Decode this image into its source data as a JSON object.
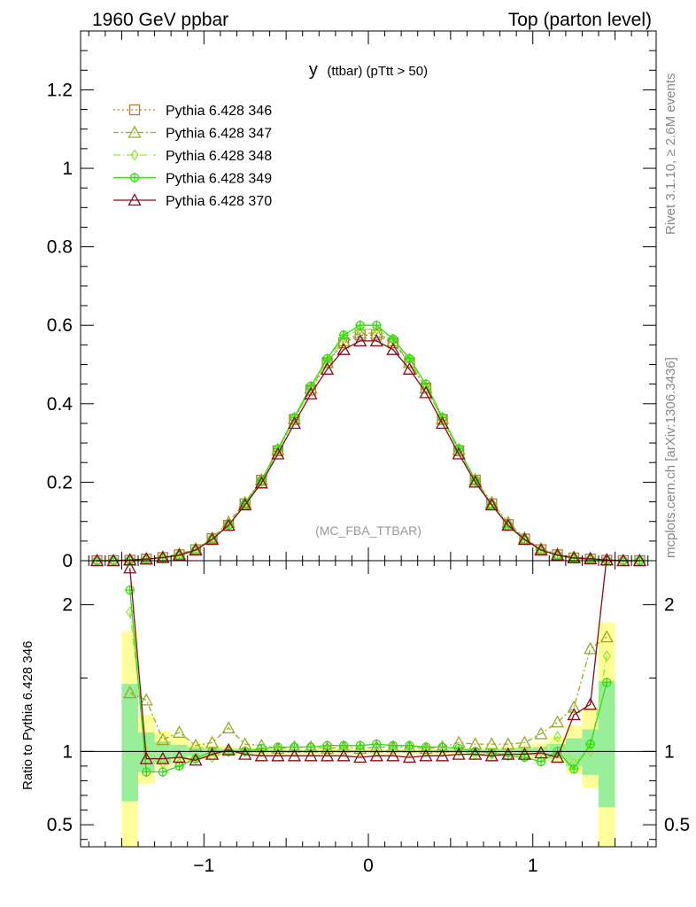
{
  "header": {
    "left": "1960 GeV ppbar",
    "right": "Top (parton level)"
  },
  "side": {
    "rivet": "Rivet 3.1.10, ≥ 2.6M events",
    "mcplots": "mcplots.cern.ch [arXiv:1306.3436]"
  },
  "plot_title": {
    "main": "y",
    "sub": "(ttbar)  (pTtt > 50)"
  },
  "analysis_label": "(MC_FBA_TTBAR)",
  "ratio_ylabel": "Ratio to Pythia 6.428 346",
  "colors": {
    "p346": "#b07a3a",
    "p347": "#9aaa22",
    "p348": "#99e634",
    "p349": "#33dd11",
    "p370": "#8a0a1a",
    "band_yellow": "#ffff99",
    "band_green": "#99ee99"
  },
  "chart_data": [
    {
      "type": "line",
      "panel": "main",
      "xlim": [
        -1.75,
        1.75
      ],
      "ylim": [
        0,
        1.35
      ],
      "y_ticks": [
        0,
        0.2,
        0.4,
        0.6,
        0.8,
        1,
        1.2
      ],
      "y_tick_labels": [
        "0",
        "0.2",
        "0.4",
        "0.6",
        "0.8",
        "1",
        "1.2"
      ],
      "legend_position": "top-left",
      "x": [
        -1.65,
        -1.55,
        -1.45,
        -1.35,
        -1.25,
        -1.15,
        -1.05,
        -0.95,
        -0.85,
        -0.75,
        -0.65,
        -0.55,
        -0.45,
        -0.35,
        -0.25,
        -0.15,
        -0.05,
        0.05,
        0.15,
        0.25,
        0.35,
        0.45,
        0.55,
        0.65,
        0.75,
        0.85,
        0.95,
        1.05,
        1.15,
        1.25,
        1.35,
        1.45,
        1.55,
        1.65
      ],
      "series": [
        {
          "key": "p346",
          "name": "Pythia 6.428 346",
          "marker": "square",
          "dash": "2,3",
          "values": [
            0.0,
            0.0,
            0.001,
            0.004,
            0.008,
            0.015,
            0.028,
            0.056,
            0.09,
            0.145,
            0.205,
            0.28,
            0.36,
            0.435,
            0.505,
            0.555,
            0.575,
            0.575,
            0.555,
            0.505,
            0.44,
            0.36,
            0.28,
            0.205,
            0.145,
            0.092,
            0.055,
            0.028,
            0.015,
            0.007,
            0.004,
            0.001,
            0.0,
            0.0
          ]
        },
        {
          "key": "p347",
          "name": "Pythia 6.428 347",
          "marker": "triangle",
          "dash": "6,3,2,3",
          "values": [
            0.0,
            0.0,
            0.0015,
            0.0055,
            0.009,
            0.017,
            0.03,
            0.058,
            0.098,
            0.148,
            0.206,
            0.283,
            0.362,
            0.44,
            0.505,
            0.56,
            0.58,
            0.58,
            0.56,
            0.505,
            0.44,
            0.362,
            0.283,
            0.206,
            0.148,
            0.097,
            0.058,
            0.03,
            0.017,
            0.009,
            0.006,
            0.002,
            0.0,
            0.0
          ]
        },
        {
          "key": "p348",
          "name": "Pythia 6.428 348",
          "marker": "diamond",
          "dash": "8,3,1,3",
          "values": [
            0.0,
            0.0,
            0.002,
            0.004,
            0.007,
            0.014,
            0.028,
            0.055,
            0.09,
            0.145,
            0.2,
            0.282,
            0.36,
            0.437,
            0.51,
            0.57,
            0.59,
            0.59,
            0.565,
            0.515,
            0.44,
            0.36,
            0.28,
            0.2,
            0.143,
            0.09,
            0.054,
            0.027,
            0.013,
            0.006,
            0.004,
            0.002,
            0.0,
            0.0
          ]
        },
        {
          "key": "p349",
          "name": "Pythia 6.428 349",
          "marker": "circle-plus",
          "dash": "",
          "values": [
            0.0,
            0.0,
            0.0015,
            0.0035,
            0.007,
            0.013,
            0.027,
            0.055,
            0.09,
            0.145,
            0.205,
            0.285,
            0.365,
            0.445,
            0.515,
            0.575,
            0.6,
            0.6,
            0.565,
            0.515,
            0.45,
            0.365,
            0.285,
            0.205,
            0.143,
            0.088,
            0.053,
            0.027,
            0.014,
            0.006,
            0.003,
            0.0015,
            0.0,
            0.0
          ]
        },
        {
          "key": "p370",
          "name": "Pythia 6.428 370",
          "marker": "triangle",
          "dash": "",
          "values": [
            0.0,
            0.0,
            0.002,
            0.004,
            0.008,
            0.014,
            0.027,
            0.054,
            0.09,
            0.142,
            0.198,
            0.272,
            0.35,
            0.425,
            0.488,
            0.538,
            0.56,
            0.56,
            0.538,
            0.488,
            0.428,
            0.35,
            0.272,
            0.2,
            0.142,
            0.09,
            0.054,
            0.027,
            0.014,
            0.007,
            0.005,
            0.002,
            0.0,
            0.0
          ]
        }
      ]
    },
    {
      "type": "line",
      "panel": "ratio",
      "xlim": [
        -1.75,
        1.75
      ],
      "ylim": [
        0.35,
        2.3
      ],
      "x_ticks": [
        -1,
        0,
        1
      ],
      "x_tick_labels": [
        "−1",
        "0",
        "1"
      ],
      "y_ticks": [
        0.5,
        1,
        2
      ],
      "y_tick_labels": [
        "0.5",
        "1",
        "2"
      ],
      "x": [
        -1.45,
        -1.35,
        -1.25,
        -1.15,
        -1.05,
        -0.95,
        -0.85,
        -0.75,
        -0.65,
        -0.55,
        -0.45,
        -0.35,
        -0.25,
        -0.15,
        -0.05,
        0.05,
        0.15,
        0.25,
        0.35,
        0.45,
        0.55,
        0.65,
        0.75,
        0.85,
        0.95,
        1.05,
        1.15,
        1.25,
        1.35,
        1.45
      ],
      "bands": {
        "bin_lo": [
          -1.5,
          -1.4,
          -1.3,
          -1.2,
          -1.1,
          -1.0,
          -0.9,
          -0.8,
          -0.7,
          -0.6,
          -0.5,
          -0.4,
          -0.3,
          -0.2,
          -0.1,
          0.0,
          0.1,
          0.2,
          0.3,
          0.4,
          0.5,
          0.6,
          0.7,
          0.8,
          0.9,
          1.0,
          1.1,
          1.2,
          1.3,
          1.4
        ],
        "bin_hi": [
          -1.4,
          -1.3,
          -1.2,
          -1.1,
          -1.0,
          -0.9,
          -0.8,
          -0.7,
          -0.6,
          -0.5,
          -0.4,
          -0.3,
          -0.2,
          -0.1,
          0.0,
          0.1,
          0.2,
          0.3,
          0.4,
          0.5,
          0.6,
          0.7,
          0.8,
          0.9,
          1.0,
          1.1,
          1.2,
          1.3,
          1.4,
          1.5
        ],
        "yellow_lo": [
          0.3,
          0.78,
          0.88,
          0.92,
          0.95,
          0.96,
          0.97,
          0.975,
          0.98,
          0.98,
          0.985,
          0.985,
          0.985,
          0.985,
          0.985,
          0.985,
          0.985,
          0.985,
          0.985,
          0.985,
          0.98,
          0.98,
          0.975,
          0.97,
          0.96,
          0.95,
          0.92,
          0.85,
          0.75,
          0.3
        ],
        "yellow_hi": [
          1.82,
          1.25,
          1.14,
          1.09,
          1.06,
          1.045,
          1.035,
          1.03,
          1.025,
          1.02,
          1.018,
          1.016,
          1.015,
          1.015,
          1.015,
          1.015,
          1.015,
          1.015,
          1.016,
          1.018,
          1.02,
          1.025,
          1.03,
          1.035,
          1.045,
          1.06,
          1.1,
          1.18,
          1.3,
          1.88
        ],
        "green_lo": [
          0.66,
          0.86,
          0.92,
          0.95,
          0.97,
          0.975,
          0.98,
          0.985,
          0.988,
          0.99,
          0.99,
          0.99,
          0.992,
          0.992,
          0.992,
          0.992,
          0.992,
          0.992,
          0.99,
          0.99,
          0.99,
          0.988,
          0.985,
          0.98,
          0.975,
          0.97,
          0.95,
          0.9,
          0.84,
          0.62
        ],
        "green_hi": [
          1.46,
          1.13,
          1.07,
          1.045,
          1.03,
          1.022,
          1.018,
          1.015,
          1.012,
          1.01,
          1.01,
          1.01,
          1.008,
          1.008,
          1.008,
          1.008,
          1.008,
          1.008,
          1.01,
          1.01,
          1.01,
          1.012,
          1.015,
          1.018,
          1.022,
          1.03,
          1.05,
          1.09,
          1.15,
          1.48
        ]
      },
      "series": [
        {
          "key": "p347",
          "name": "Pythia 6.428 347",
          "marker": "triangle",
          "dash": "6,3,2,3",
          "values": [
            1.4,
            1.35,
            1.08,
            1.13,
            1.04,
            1.06,
            1.16,
            1.05,
            1.04,
            1.02,
            1.03,
            1.03,
            1.02,
            1.03,
            1.02,
            1.03,
            1.03,
            1.03,
            1.02,
            1.03,
            1.06,
            1.05,
            1.05,
            1.05,
            1.06,
            1.12,
            1.2,
            1.3,
            1.7,
            1.78
          ]
        },
        {
          "key": "p348",
          "name": "Pythia 6.428 348",
          "marker": "diamond",
          "dash": "8,3,1,3",
          "values": [
            1.95,
            1.0,
            0.92,
            0.92,
            0.95,
            0.96,
            1.0,
            1.0,
            1.0,
            1.0,
            1.0,
            1.0,
            1.0,
            1.01,
            1.0,
            1.0,
            1.01,
            1.0,
            1.0,
            1.0,
            1.0,
            0.98,
            0.98,
            0.99,
            1.0,
            1.0,
            1.1,
            0.92,
            1.0,
            1.65
          ]
        },
        {
          "key": "p349",
          "name": "Pythia 6.428 349",
          "marker": "circle-plus",
          "dash": "",
          "values": [
            2.1,
            0.86,
            0.86,
            0.9,
            0.95,
            1.0,
            1.0,
            1.0,
            1.02,
            1.03,
            1.03,
            1.03,
            1.04,
            1.04,
            1.04,
            1.05,
            1.04,
            1.04,
            1.03,
            1.03,
            1.02,
            1.0,
            0.99,
            0.97,
            0.96,
            0.93,
            1.0,
            0.88,
            1.05,
            1.47
          ]
        },
        {
          "key": "p370",
          "name": "Pythia 6.428 370",
          "marker": "triangle",
          "dash": "",
          "values": [
            2.25,
            0.95,
            0.95,
            0.96,
            0.94,
            0.98,
            1.01,
            0.98,
            0.97,
            0.97,
            0.97,
            0.97,
            0.97,
            0.97,
            0.96,
            0.97,
            0.97,
            0.96,
            0.97,
            0.97,
            0.98,
            0.98,
            0.97,
            0.98,
            0.98,
            0.99,
            0.96,
            1.25,
            1.32,
            2.4
          ]
        }
      ]
    }
  ]
}
